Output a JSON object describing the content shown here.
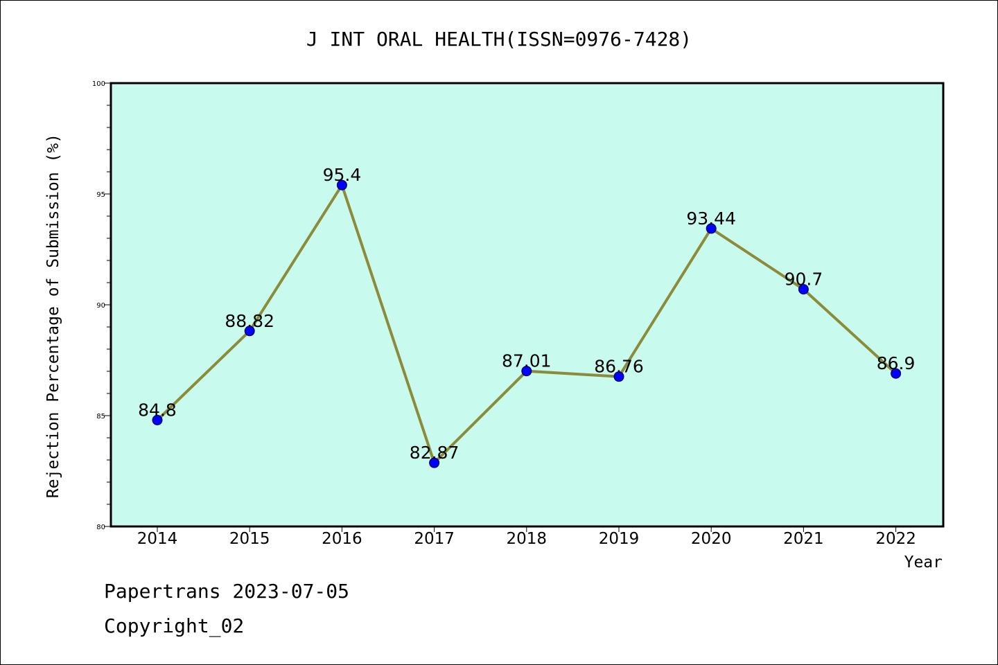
{
  "colors": {
    "plot_background": "#c8fbee",
    "line": "#8b8b3a",
    "marker": "#0000ff",
    "frame": "#000000"
  },
  "chart_data": {
    "type": "line",
    "title": "J INT ORAL HEALTH(ISSN=0976-7428)",
    "xlabel": "Year",
    "ylabel": "Rejection Percentage of Submission (%)",
    "categories": [
      "2014",
      "2015",
      "2016",
      "2017",
      "2018",
      "2019",
      "2020",
      "2021",
      "2022"
    ],
    "series": [
      {
        "values": [
          84.8,
          88.82,
          95.4,
          82.87,
          87.01,
          86.76,
          93.44,
          90.7,
          86.9
        ],
        "data_labels": [
          "84.8",
          "88.82",
          "95.4",
          "82.87",
          "87.01",
          "86.76",
          "93.44",
          "90.7",
          "86.9"
        ]
      }
    ],
    "ylim": [
      80,
      100
    ],
    "yticks": [
      "80",
      "85",
      "90",
      "95",
      "100"
    ],
    "grid": false,
    "legend": "none"
  },
  "footer": {
    "source": "Papertrans 2023-07-05",
    "copyright": "Copyright_02"
  }
}
